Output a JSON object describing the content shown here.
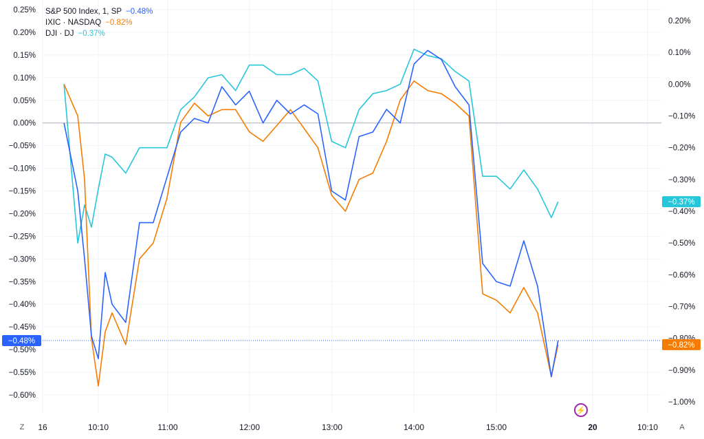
{
  "legend": [
    {
      "label": "S&P 500 Index, 1, SP",
      "value": "−0.48%",
      "color": "#2962ff"
    },
    {
      "label": "IXIC · NASDAQ",
      "value": "−0.82%",
      "color": "#f57c00"
    },
    {
      "label": "DJI · DJ",
      "value": "−0.37%",
      "color": "#26c6da"
    }
  ],
  "controls": {
    "left_label": "Z",
    "right_label": "A",
    "event_icon": "lightning-icon"
  },
  "chart_data": {
    "type": "line",
    "x_ticks": [
      "16",
      "10:10",
      "11:00",
      "12:00",
      "13:00",
      "14:00",
      "15:00",
      "20",
      "10:10"
    ],
    "x_tick_bold": [
      false,
      false,
      false,
      false,
      false,
      false,
      false,
      true,
      false
    ],
    "left_ticks": [
      "0.25%",
      "0.20%",
      "0.15%",
      "0.10%",
      "0.05%",
      "0.00%",
      "−0.05%",
      "−0.10%",
      "−0.15%",
      "−0.20%",
      "−0.25%",
      "−0.30%",
      "−0.35%",
      "−0.40%",
      "−0.45%",
      "−0.50%",
      "−0.55%",
      "−0.60%"
    ],
    "right_ticks": [
      "0.20%",
      "0.10%",
      "0.00%",
      "−0.10%",
      "−0.20%",
      "−0.30%",
      "−0.40%",
      "−0.50%",
      "−0.60%",
      "−0.70%",
      "−0.80%",
      "−0.90%",
      "−1.00%"
    ],
    "left_range": [
      -0.6,
      0.25
    ],
    "right_range": [
      -1.0,
      0.2
    ],
    "grid": true,
    "reference_line": 0.0,
    "x": [
      "09:45",
      "09:55",
      "10:00",
      "10:05",
      "10:10",
      "10:15",
      "10:20",
      "10:30",
      "10:40",
      "10:50",
      "11:00",
      "11:10",
      "11:20",
      "11:30",
      "11:40",
      "11:50",
      "12:00",
      "12:10",
      "12:20",
      "12:30",
      "12:40",
      "12:50",
      "13:00",
      "13:10",
      "13:20",
      "13:30",
      "13:40",
      "13:50",
      "14:00",
      "14:10",
      "14:20",
      "14:30",
      "14:40",
      "14:50",
      "15:00",
      "15:10",
      "15:20",
      "15:30",
      "15:40",
      "15:45"
    ],
    "series": [
      {
        "name": "S&P 500 Index",
        "axis": "left",
        "color": "#2962ff",
        "badge": "−0.48%",
        "values": [
          0.0,
          -0.15,
          -0.3,
          -0.47,
          -0.52,
          -0.33,
          -0.4,
          -0.44,
          -0.22,
          -0.22,
          -0.12,
          -0.02,
          0.01,
          0.0,
          0.08,
          0.04,
          0.07,
          0.0,
          0.05,
          0.02,
          0.04,
          0.02,
          -0.15,
          -0.17,
          -0.03,
          -0.02,
          0.03,
          0.0,
          0.13,
          0.16,
          0.14,
          0.08,
          0.04,
          -0.31,
          -0.35,
          -0.36,
          -0.26,
          -0.36,
          -0.56,
          -0.48
        ]
      },
      {
        "name": "IXIC",
        "axis": "right",
        "color": "#f57c00",
        "badge": "−0.82%",
        "values": [
          0.0,
          -0.1,
          -0.3,
          -0.8,
          -0.95,
          -0.78,
          -0.72,
          -0.82,
          -0.55,
          -0.5,
          -0.36,
          -0.12,
          -0.06,
          -0.1,
          -0.08,
          -0.08,
          -0.15,
          -0.18,
          -0.13,
          -0.08,
          -0.14,
          -0.2,
          -0.35,
          -0.4,
          -0.3,
          -0.28,
          -0.18,
          -0.05,
          0.01,
          -0.02,
          -0.03,
          -0.06,
          -0.1,
          -0.66,
          -0.68,
          -0.72,
          -0.64,
          -0.72,
          -0.92,
          -0.82
        ]
      },
      {
        "name": "DJI",
        "axis": "right",
        "color": "#26c6da",
        "badge": "−0.37%",
        "values": [
          0.0,
          -0.5,
          -0.38,
          -0.45,
          -0.33,
          -0.22,
          -0.23,
          -0.28,
          -0.2,
          -0.2,
          -0.2,
          -0.08,
          -0.04,
          0.02,
          0.03,
          -0.02,
          0.06,
          0.06,
          0.03,
          0.03,
          0.05,
          0.01,
          -0.18,
          -0.2,
          -0.08,
          -0.03,
          -0.02,
          0.0,
          0.11,
          0.09,
          0.08,
          0.04,
          0.01,
          -0.29,
          -0.29,
          -0.33,
          -0.27,
          -0.33,
          -0.42,
          -0.37
        ]
      }
    ]
  }
}
